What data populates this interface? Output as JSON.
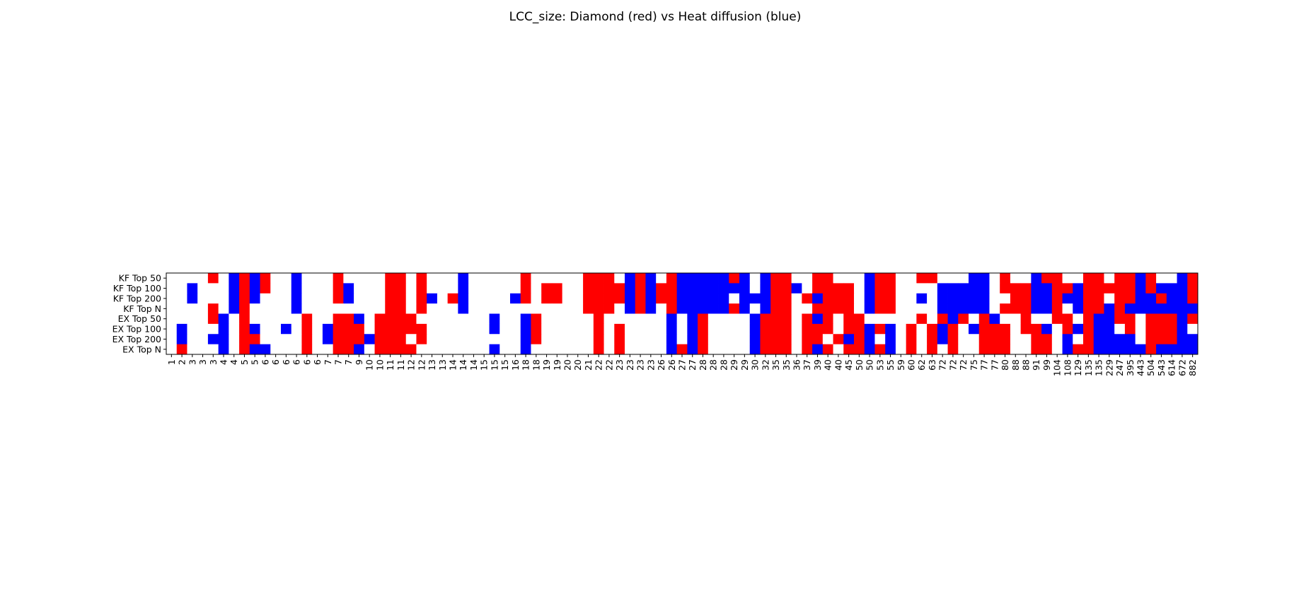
{
  "chart_data": {
    "type": "heatmap",
    "title": "LCC_size: Diamond (red) vs Heat diffusion (blue)",
    "xlabel": "",
    "ylabel": "",
    "grid": false,
    "colors": {
      "diamond": "#ff0000",
      "heat": "#0000ff",
      "none": "#ffffff"
    },
    "value_legend": {
      "0": "none",
      "1": "diamond",
      "2": "heat"
    },
    "rows": [
      "KF Top 50",
      "KF Top 100",
      "KF Top 200",
      "KF Top N",
      "EX Top 50",
      "EX Top 100",
      "EX Top 200",
      "EX Top N"
    ],
    "columns": [
      "1",
      "2",
      "3",
      "3",
      "3",
      "4",
      "4",
      "5",
      "5",
      "6",
      "6",
      "6",
      "6",
      "6",
      "6",
      "7",
      "7",
      "7",
      "9",
      "10",
      "10",
      "11",
      "11",
      "12",
      "12",
      "13",
      "13",
      "14",
      "14",
      "14",
      "15",
      "15",
      "15",
      "16",
      "18",
      "18",
      "19",
      "19",
      "20",
      "20",
      "21",
      "22",
      "22",
      "23",
      "23",
      "23",
      "23",
      "26",
      "26",
      "27",
      "27",
      "28",
      "28",
      "28",
      "29",
      "29",
      "30",
      "32",
      "35",
      "35",
      "36",
      "37",
      "39",
      "40",
      "40",
      "45",
      "50",
      "50",
      "53",
      "55",
      "59",
      "60",
      "62",
      "63",
      "72",
      "72",
      "72",
      "75",
      "77",
      "77",
      "80",
      "88",
      "88",
      "91",
      "99",
      "104",
      "108",
      "129",
      "135",
      "135",
      "229",
      "247",
      "395",
      "443",
      "504",
      "543",
      "614",
      "672",
      "882"
    ],
    "matrix": [
      [
        0,
        0,
        0,
        0,
        1,
        0,
        2,
        1,
        2,
        1,
        0,
        0,
        2,
        0,
        0,
        0,
        1,
        0,
        0,
        0,
        0,
        1,
        1,
        0,
        1,
        0,
        0,
        0,
        2,
        0,
        0,
        0,
        0,
        0,
        1,
        0,
        0,
        0,
        0,
        0,
        1,
        1,
        1,
        0,
        2,
        1,
        2,
        0,
        1,
        2,
        2,
        2,
        2,
        2,
        1,
        2,
        0,
        2,
        1,
        1,
        0,
        0,
        1,
        1,
        0,
        0,
        0,
        2,
        1,
        1,
        0,
        0,
        1,
        1,
        0,
        0,
        0,
        2,
        2,
        0,
        1,
        0,
        0,
        2,
        1,
        1,
        0,
        0,
        1,
        1,
        0,
        1,
        1,
        2,
        1,
        0,
        0,
        2,
        1
      ],
      [
        0,
        0,
        2,
        0,
        0,
        0,
        2,
        1,
        2,
        1,
        0,
        0,
        2,
        0,
        0,
        0,
        1,
        2,
        0,
        0,
        0,
        1,
        1,
        0,
        1,
        0,
        0,
        0,
        2,
        0,
        0,
        0,
        0,
        0,
        1,
        0,
        1,
        1,
        0,
        0,
        1,
        1,
        1,
        1,
        2,
        1,
        2,
        1,
        1,
        2,
        2,
        2,
        2,
        2,
        2,
        2,
        0,
        2,
        1,
        1,
        2,
        0,
        1,
        1,
        1,
        1,
        0,
        2,
        1,
        1,
        0,
        0,
        0,
        0,
        2,
        2,
        2,
        2,
        2,
        0,
        1,
        1,
        1,
        2,
        2,
        1,
        1,
        2,
        1,
        1,
        1,
        1,
        1,
        2,
        1,
        2,
        2,
        2,
        1
      ],
      [
        0,
        0,
        2,
        0,
        0,
        0,
        2,
        1,
        2,
        0,
        0,
        0,
        2,
        0,
        0,
        0,
        1,
        2,
        0,
        0,
        0,
        1,
        1,
        0,
        1,
        2,
        0,
        1,
        2,
        0,
        0,
        0,
        0,
        2,
        1,
        0,
        1,
        1,
        0,
        0,
        1,
        1,
        1,
        1,
        2,
        1,
        2,
        1,
        1,
        2,
        2,
        2,
        2,
        2,
        0,
        2,
        2,
        2,
        1,
        1,
        0,
        1,
        2,
        1,
        1,
        1,
        0,
        2,
        1,
        1,
        0,
        0,
        2,
        0,
        2,
        2,
        2,
        2,
        2,
        0,
        0,
        1,
        1,
        2,
        2,
        1,
        2,
        2,
        1,
        1,
        0,
        1,
        1,
        2,
        2,
        1,
        2,
        2,
        1
      ],
      [
        0,
        0,
        0,
        0,
        1,
        0,
        2,
        1,
        0,
        0,
        0,
        0,
        2,
        0,
        0,
        0,
        0,
        0,
        0,
        0,
        0,
        1,
        1,
        0,
        1,
        0,
        0,
        0,
        2,
        0,
        0,
        0,
        0,
        0,
        0,
        0,
        0,
        0,
        0,
        0,
        1,
        1,
        1,
        0,
        2,
        1,
        2,
        0,
        1,
        2,
        2,
        2,
        2,
        2,
        1,
        2,
        0,
        2,
        1,
        1,
        0,
        0,
        1,
        1,
        1,
        1,
        0,
        2,
        1,
        1,
        0,
        0,
        0,
        0,
        2,
        2,
        2,
        2,
        2,
        0,
        1,
        1,
        1,
        2,
        2,
        1,
        0,
        2,
        1,
        1,
        2,
        1,
        2,
        2,
        2,
        2,
        2,
        2,
        2
      ],
      [
        0,
        0,
        0,
        0,
        1,
        2,
        0,
        1,
        0,
        0,
        0,
        0,
        0,
        1,
        0,
        0,
        1,
        1,
        2,
        0,
        1,
        1,
        1,
        1,
        0,
        0,
        0,
        0,
        0,
        0,
        0,
        2,
        0,
        0,
        2,
        1,
        0,
        0,
        0,
        0,
        0,
        1,
        0,
        0,
        0,
        0,
        0,
        0,
        2,
        0,
        2,
        1,
        0,
        0,
        0,
        0,
        2,
        1,
        1,
        1,
        0,
        1,
        2,
        1,
        0,
        1,
        1,
        0,
        0,
        0,
        0,
        0,
        1,
        0,
        1,
        2,
        1,
        0,
        1,
        2,
        0,
        0,
        1,
        0,
        0,
        1,
        1,
        0,
        1,
        2,
        2,
        1,
        1,
        0,
        1,
        1,
        1,
        2,
        1
      ],
      [
        0,
        2,
        0,
        0,
        0,
        2,
        0,
        1,
        2,
        0,
        0,
        2,
        0,
        1,
        0,
        2,
        1,
        1,
        1,
        0,
        1,
        1,
        1,
        1,
        1,
        0,
        0,
        0,
        0,
        0,
        0,
        2,
        0,
        0,
        2,
        1,
        0,
        0,
        0,
        0,
        0,
        1,
        0,
        1,
        0,
        0,
        0,
        0,
        2,
        0,
        2,
        1,
        0,
        0,
        0,
        0,
        2,
        1,
        1,
        1,
        0,
        1,
        1,
        1,
        0,
        1,
        1,
        2,
        1,
        2,
        0,
        1,
        0,
        1,
        2,
        1,
        0,
        2,
        1,
        1,
        1,
        0,
        1,
        1,
        2,
        0,
        1,
        2,
        1,
        2,
        2,
        0,
        1,
        0,
        1,
        1,
        1,
        2,
        0
      ],
      [
        0,
        2,
        0,
        0,
        2,
        2,
        0,
        1,
        1,
        0,
        0,
        0,
        0,
        1,
        0,
        2,
        1,
        1,
        1,
        2,
        1,
        1,
        1,
        0,
        1,
        0,
        0,
        0,
        0,
        0,
        0,
        0,
        0,
        0,
        2,
        1,
        0,
        0,
        0,
        0,
        0,
        1,
        0,
        1,
        0,
        0,
        0,
        0,
        2,
        0,
        2,
        1,
        0,
        0,
        0,
        0,
        2,
        1,
        1,
        1,
        0,
        1,
        1,
        0,
        1,
        2,
        1,
        2,
        0,
        2,
        0,
        1,
        0,
        1,
        2,
        1,
        0,
        0,
        1,
        1,
        1,
        0,
        0,
        1,
        1,
        0,
        2,
        0,
        1,
        2,
        2,
        2,
        2,
        0,
        1,
        1,
        1,
        2,
        2
      ],
      [
        0,
        1,
        0,
        0,
        0,
        2,
        0,
        1,
        2,
        2,
        0,
        0,
        0,
        1,
        0,
        0,
        1,
        1,
        2,
        0,
        1,
        1,
        1,
        1,
        0,
        0,
        0,
        0,
        0,
        0,
        0,
        2,
        0,
        0,
        2,
        0,
        0,
        0,
        0,
        0,
        0,
        1,
        0,
        1,
        0,
        0,
        0,
        0,
        2,
        1,
        2,
        1,
        0,
        0,
        0,
        0,
        2,
        1,
        1,
        1,
        0,
        1,
        2,
        1,
        0,
        1,
        1,
        2,
        1,
        2,
        0,
        1,
        0,
        1,
        0,
        1,
        0,
        0,
        1,
        1,
        1,
        0,
        0,
        1,
        1,
        0,
        2,
        1,
        1,
        2,
        2,
        2,
        2,
        2,
        1,
        2,
        2,
        2,
        2
      ]
    ]
  }
}
